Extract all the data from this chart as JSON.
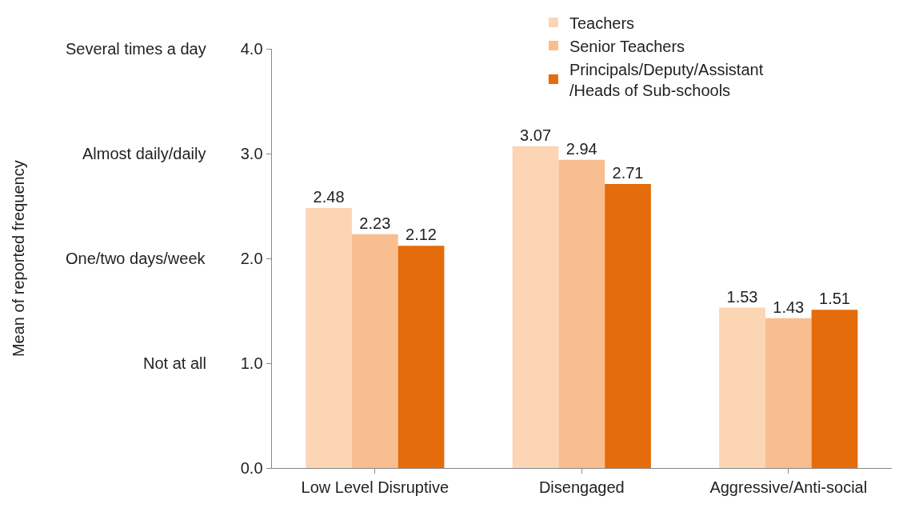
{
  "chart_data": {
    "type": "bar",
    "categories": [
      "Low Level Disruptive",
      "Disengaged",
      "Aggressive/Anti-social"
    ],
    "series": [
      {
        "name": "Teachers",
        "color": "#fcd5b5",
        "values": [
          2.48,
          3.07,
          1.53
        ]
      },
      {
        "name": "Senior Teachers",
        "color": "#f9be8f",
        "values": [
          2.23,
          2.94,
          1.43
        ]
      },
      {
        "name": "Principals/Deputy/Assistant/Heads of Sub-schools",
        "color": "#e46c0a",
        "values": [
          2.12,
          2.71,
          1.51
        ]
      }
    ],
    "ylim": [
      0,
      4
    ],
    "yticks": [
      {
        "value": 0,
        "label": "0.0"
      },
      {
        "value": 1,
        "label": "1.0"
      },
      {
        "value": 2,
        "label": "2.0"
      },
      {
        "value": 3,
        "label": "3.0"
      },
      {
        "value": 4,
        "label": "4.0"
      }
    ],
    "annotations": [
      "Mean of reported frequency",
      "Not at all",
      "One/two days/week",
      "Almost daily/daily",
      "Several times a day"
    ],
    "data_labels": true,
    "grid": false,
    "legend": "top right"
  }
}
